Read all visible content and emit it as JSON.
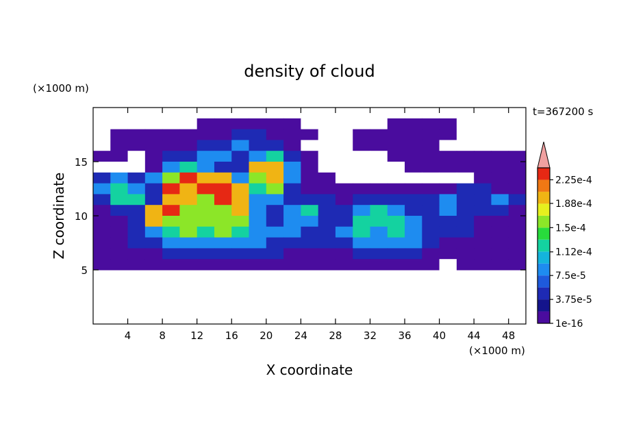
{
  "chart_data": {
    "type": "contour",
    "title": "density of cloud",
    "xlabel": "X coordinate",
    "ylabel": "Z coordinate",
    "x_unit": "(×1000 m)",
    "y_unit": "(×1000 m)",
    "time_label": "t=367200 s",
    "xlim": [
      0,
      50
    ],
    "ylim": [
      0,
      20
    ],
    "xticks": [
      4,
      8,
      12,
      16,
      20,
      24,
      28,
      32,
      36,
      40,
      44,
      48
    ],
    "yticks": [
      5,
      10,
      15
    ],
    "x": [
      1,
      3,
      5,
      7,
      9,
      11,
      13,
      15,
      17,
      19,
      21,
      23,
      25,
      27,
      29,
      31,
      33,
      35,
      37,
      39,
      41,
      43,
      45,
      47,
      49
    ],
    "y": [
      18.5,
      17.5,
      16.5,
      15.5,
      14.5,
      13.5,
      12.5,
      11.5,
      10.5,
      9.5,
      8.5,
      7.5,
      6.5,
      5.5
    ],
    "z": [
      [
        0,
        0,
        0,
        0,
        0,
        0,
        1e-05,
        1e-05,
        1e-05,
        1e-05,
        1e-05,
        1e-05,
        0,
        0,
        0,
        0,
        0,
        1e-05,
        1e-05,
        1e-05,
        1e-05,
        0,
        0,
        0,
        0
      ],
      [
        0,
        1e-05,
        1e-05,
        1e-05,
        1e-05,
        1e-05,
        1e-05,
        1e-05,
        4e-05,
        4e-05,
        1e-05,
        1e-05,
        1e-05,
        0,
        0,
        1e-05,
        1e-05,
        1e-05,
        1e-05,
        1e-05,
        1e-05,
        0,
        0,
        0,
        0
      ],
      [
        0,
        1e-05,
        1e-05,
        1e-05,
        1e-05,
        1e-05,
        4e-05,
        4e-05,
        9e-05,
        4e-05,
        4e-05,
        1e-05,
        0,
        0,
        0,
        1e-05,
        1e-05,
        1e-05,
        1e-05,
        1e-05,
        0,
        0,
        0,
        0,
        0
      ],
      [
        1e-05,
        1e-05,
        0,
        1e-05,
        4e-05,
        4e-05,
        9e-05,
        9e-05,
        4e-05,
        9e-05,
        0.00013,
        4e-05,
        1e-05,
        0,
        0,
        0,
        0,
        1e-05,
        1e-05,
        1e-05,
        1e-05,
        1e-05,
        1e-05,
        1e-05,
        1e-05
      ],
      [
        0,
        0,
        0,
        1e-05,
        9e-05,
        0.00013,
        9e-05,
        4e-05,
        4e-05,
        0.0002,
        0.0002,
        9e-05,
        1e-05,
        0,
        0,
        0,
        0,
        0,
        1e-05,
        1e-05,
        1e-05,
        1e-05,
        1e-05,
        1e-05,
        1e-05
      ],
      [
        4e-05,
        9e-05,
        4e-05,
        9e-05,
        0.00016,
        0.00023,
        0.0002,
        0.0002,
        9e-05,
        0.00016,
        0.0002,
        9e-05,
        1e-05,
        1e-05,
        0,
        0,
        0,
        0,
        0,
        0,
        0,
        0,
        1e-05,
        1e-05,
        1e-05
      ],
      [
        9e-05,
        0.00013,
        9e-05,
        4e-05,
        0.00023,
        0.0002,
        0.00023,
        0.00023,
        0.0002,
        0.00013,
        0.00016,
        4e-05,
        1e-05,
        1e-05,
        1e-05,
        1e-05,
        1e-05,
        1e-05,
        1e-05,
        1e-05,
        1e-05,
        4e-05,
        4e-05,
        1e-05,
        1e-05
      ],
      [
        4e-05,
        0.00013,
        0.00013,
        4e-05,
        0.0002,
        0.0002,
        0.00016,
        0.00023,
        0.0002,
        9e-05,
        9e-05,
        4e-05,
        4e-05,
        4e-05,
        1e-05,
        4e-05,
        4e-05,
        4e-05,
        4e-05,
        4e-05,
        9e-05,
        4e-05,
        4e-05,
        9e-05,
        4e-05
      ],
      [
        1e-05,
        4e-05,
        4e-05,
        0.0002,
        0.00023,
        0.00016,
        0.00016,
        0.00016,
        0.0002,
        9e-05,
        4e-05,
        9e-05,
        0.00013,
        4e-05,
        4e-05,
        9e-05,
        0.00013,
        9e-05,
        4e-05,
        4e-05,
        9e-05,
        4e-05,
        4e-05,
        4e-05,
        1e-05
      ],
      [
        1e-05,
        1e-05,
        4e-05,
        0.0002,
        0.00016,
        0.00016,
        0.00016,
        0.00016,
        0.00016,
        9e-05,
        4e-05,
        9e-05,
        9e-05,
        4e-05,
        4e-05,
        0.00013,
        0.00013,
        0.00013,
        9e-05,
        4e-05,
        4e-05,
        4e-05,
        1e-05,
        1e-05,
        1e-05
      ],
      [
        1e-05,
        1e-05,
        4e-05,
        9e-05,
        0.00013,
        0.00016,
        0.00013,
        0.00016,
        0.00013,
        9e-05,
        9e-05,
        9e-05,
        4e-05,
        4e-05,
        9e-05,
        0.00013,
        9e-05,
        0.00013,
        9e-05,
        4e-05,
        4e-05,
        4e-05,
        1e-05,
        1e-05,
        1e-05
      ],
      [
        1e-05,
        1e-05,
        4e-05,
        4e-05,
        9e-05,
        9e-05,
        9e-05,
        9e-05,
        9e-05,
        9e-05,
        4e-05,
        4e-05,
        4e-05,
        4e-05,
        4e-05,
        9e-05,
        9e-05,
        9e-05,
        9e-05,
        4e-05,
        1e-05,
        1e-05,
        1e-05,
        1e-05,
        1e-05
      ],
      [
        1e-05,
        1e-05,
        1e-05,
        1e-05,
        4e-05,
        4e-05,
        4e-05,
        4e-05,
        4e-05,
        4e-05,
        4e-05,
        1e-05,
        1e-05,
        1e-05,
        1e-05,
        4e-05,
        4e-05,
        4e-05,
        4e-05,
        1e-05,
        1e-05,
        1e-05,
        1e-05,
        1e-05,
        1e-05
      ],
      [
        1e-05,
        1e-05,
        1e-05,
        1e-05,
        1e-05,
        1e-05,
        1e-05,
        1e-05,
        1e-05,
        1e-05,
        1e-05,
        1e-05,
        1e-05,
        1e-05,
        1e-05,
        1e-05,
        1e-05,
        1e-05,
        1e-05,
        1e-05,
        0,
        1e-05,
        1e-05,
        1e-05,
        1e-05
      ]
    ],
    "levels": [
      1e-16,
      1.875e-05,
      3.75e-05,
      5.625e-05,
      7.5e-05,
      9.375e-05,
      0.0001125,
      0.00013125,
      0.00015,
      0.00016875,
      0.0001875,
      0.00020625,
      0.000225,
      0.00024375
    ],
    "colors": [
      "#4a0c9e",
      "#14148c",
      "#1e2ab4",
      "#1e5adc",
      "#1e8cf0",
      "#14b4dc",
      "#14d2a0",
      "#28dc3c",
      "#8ce628",
      "#e6f01e",
      "#f0b414",
      "#f07814",
      "#e62814"
    ],
    "extend_color": "#f0a0a0",
    "colorbar_ticks": [
      {
        "value": 1e-16,
        "label": "1e-16"
      },
      {
        "value": 3.75e-05,
        "label": "3.75e-5"
      },
      {
        "value": 7.5e-05,
        "label": "7.5e-5"
      },
      {
        "value": 0.000112,
        "label": "1.12e-4"
      },
      {
        "value": 0.00015,
        "label": "1.5e-4"
      },
      {
        "value": 0.000188,
        "label": "1.88e-4"
      },
      {
        "value": 0.000225,
        "label": "2.25e-4"
      }
    ]
  }
}
